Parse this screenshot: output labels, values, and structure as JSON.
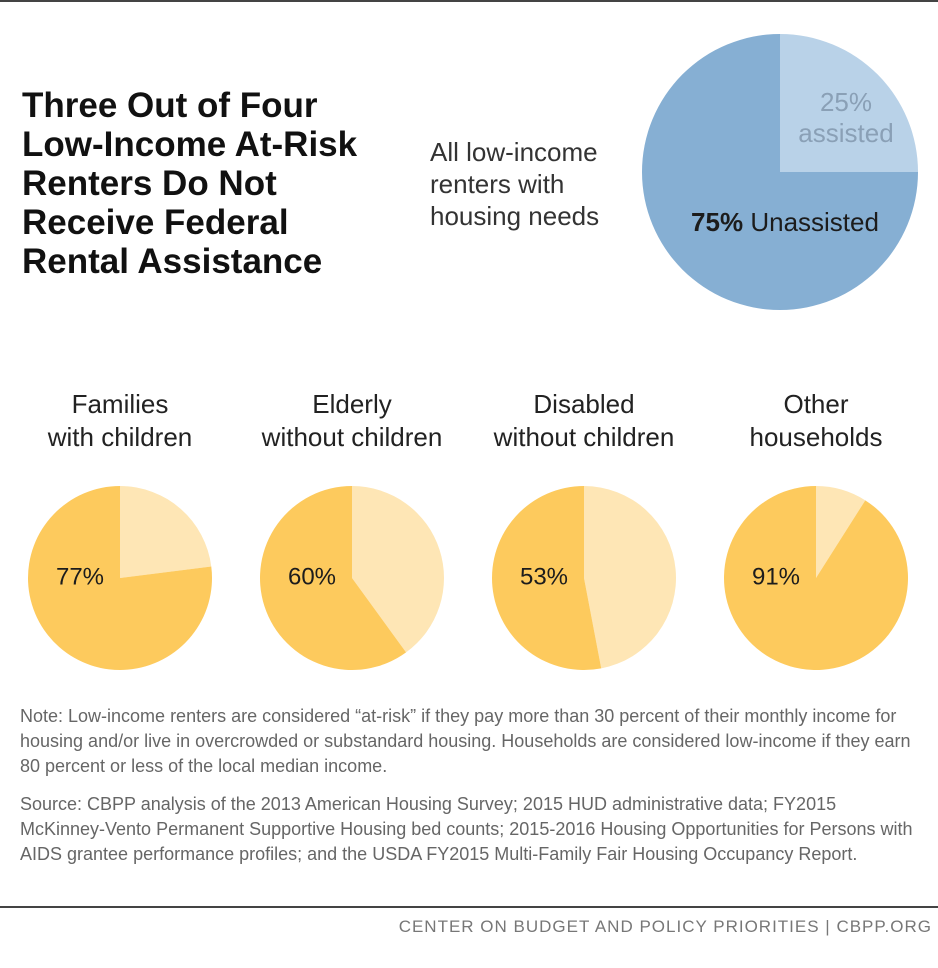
{
  "title": "Three Out of Four\nLow-Income At-Risk\nRenters Do Not\nReceive Federal\nRental Assistance",
  "chart_data": [
    {
      "type": "pie",
      "subtitle": "All low-income\nrenters with\nhousing needs",
      "categories": [
        "Unassisted",
        "assisted"
      ],
      "values": [
        75,
        25
      ],
      "value_labels": [
        "75%",
        "25%"
      ],
      "colors": [
        "#86afd3",
        "#b9d2e8"
      ]
    },
    {
      "type": "pie",
      "title": "Families\nwith children",
      "values": [
        77,
        23
      ],
      "value_labels": [
        "77%",
        null
      ],
      "colors": [
        "#fdca5d",
        "#fee6b5"
      ]
    },
    {
      "type": "pie",
      "title": "Elderly\nwithout children",
      "values": [
        60,
        40
      ],
      "value_labels": [
        "60%",
        null
      ],
      "colors": [
        "#fdca5d",
        "#fee6b5"
      ]
    },
    {
      "type": "pie",
      "title": "Disabled\nwithout children",
      "values": [
        53,
        47
      ],
      "value_labels": [
        "53%",
        null
      ],
      "colors": [
        "#fdca5d",
        "#fee6b5"
      ]
    },
    {
      "type": "pie",
      "title": "Other\nhouseholds",
      "values": [
        91,
        9
      ],
      "value_labels": [
        "91%",
        null
      ],
      "colors": [
        "#fdca5d",
        "#fee6b5"
      ]
    }
  ],
  "note": "Note: Low-income renters are considered “at-risk” if they pay more than 30 percent of their monthly income for housing and/or live in overcrowded or substandard housing. Households are considered low-income if they earn 80 percent or less of the local median income.",
  "source": "Source:  CBPP analysis of the 2013 American Housing Survey; 2015 HUD administrative data; FY2015 McKinney-Vento Permanent Supportive Housing bed counts; 2015-2016 Housing Opportunities for Persons with AIDS grantee performance profiles; and the USDA FY2015 Multi-Family Fair Housing Occupancy Report.",
  "footer": "CENTER ON BUDGET AND POLICY PRIORITIES | CBPP.ORG"
}
